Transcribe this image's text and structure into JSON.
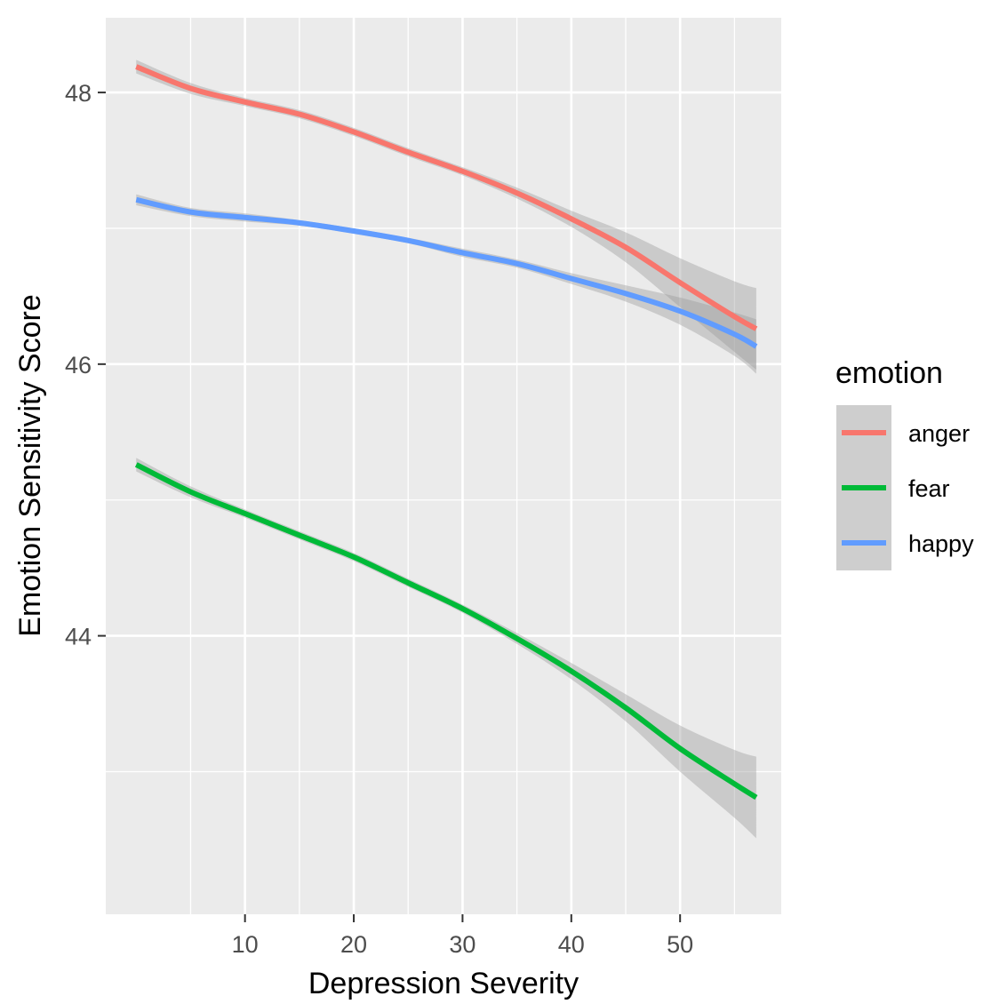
{
  "chart_data": {
    "type": "line",
    "title": "",
    "xlabel": "Depression Severity",
    "ylabel": "Emotion Sensitivity Score",
    "xlim": [
      -2.8,
      59.3
    ],
    "ylim": [
      41.95,
      48.55
    ],
    "x_ticks": [
      10,
      20,
      30,
      40,
      50
    ],
    "x_tick_labels": [
      "10",
      "20",
      "30",
      "40",
      "50"
    ],
    "y_ticks": [
      44,
      46,
      48
    ],
    "y_tick_labels": [
      "44",
      "46",
      "48"
    ],
    "grid": true,
    "legend": {
      "title": "emotion",
      "position": "right",
      "entries": [
        "anger",
        "fear",
        "happy"
      ]
    },
    "x": [
      0,
      5,
      10,
      15,
      20,
      25,
      30,
      35,
      40,
      45,
      50,
      55,
      57
    ],
    "series": [
      {
        "name": "anger",
        "color": "#F8766D",
        "values": [
          48.19,
          48.03,
          47.93,
          47.84,
          47.71,
          47.56,
          47.42,
          47.26,
          47.07,
          46.86,
          46.6,
          46.35,
          46.26
        ],
        "band_halfwidth": [
          0.05,
          0.04,
          0.03,
          0.03,
          0.03,
          0.03,
          0.03,
          0.04,
          0.06,
          0.11,
          0.18,
          0.26,
          0.3
        ]
      },
      {
        "name": "fear",
        "color": "#00BA38",
        "values": [
          45.26,
          45.06,
          44.9,
          44.74,
          44.58,
          44.39,
          44.2,
          43.98,
          43.74,
          43.47,
          43.17,
          42.91,
          42.81
        ],
        "band_halfwidth": [
          0.05,
          0.04,
          0.03,
          0.03,
          0.03,
          0.03,
          0.03,
          0.04,
          0.06,
          0.1,
          0.17,
          0.25,
          0.3
        ]
      },
      {
        "name": "happy",
        "color": "#619CFF",
        "values": [
          47.21,
          47.12,
          47.08,
          47.04,
          46.98,
          46.91,
          46.82,
          46.74,
          46.63,
          46.52,
          46.39,
          46.22,
          46.13
        ],
        "band_halfwidth": [
          0.04,
          0.03,
          0.03,
          0.02,
          0.02,
          0.02,
          0.03,
          0.03,
          0.04,
          0.06,
          0.1,
          0.16,
          0.2
        ]
      }
    ]
  }
}
